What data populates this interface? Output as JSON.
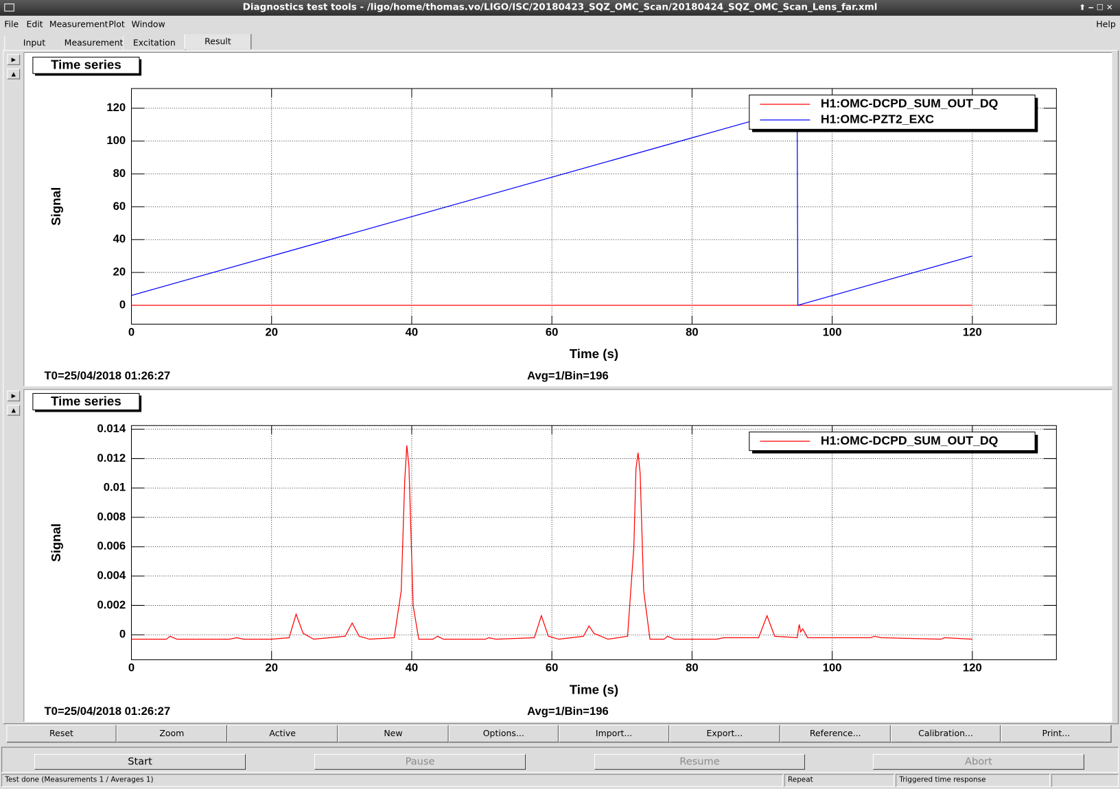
{
  "window_title": "Diagnostics test tools - /ligo/home/thomas.vo/LIGO/ISC/20180423_SQZ_OMC_Scan/20180424_SQZ_OMC_Scan_Lens_far.xml",
  "menu": [
    "File",
    "Edit",
    "Measurement",
    "Plot",
    "Window"
  ],
  "help_menu": "Help",
  "tabs": [
    "Input",
    "Measurement",
    "Excitation",
    "Result"
  ],
  "plot_buttons": [
    "Reset",
    "Zoom",
    "Active",
    "New",
    "Options...",
    "Import...",
    "Export...",
    "Reference...",
    "Calibration...",
    "Print..."
  ],
  "run_buttons": [
    "Start",
    "Pause",
    "Resume",
    "Abort"
  ],
  "status": [
    "Test done (Measurements 1 / Averages 1)",
    "Repeat",
    "Triggered time response"
  ],
  "chart_data": [
    {
      "type": "line",
      "title": "Time series",
      "xlabel": "Time (s)",
      "ylabel": "Signal",
      "annotations": [
        "T0=25/04/2018 01:26:27",
        "Avg=1/Bin=196"
      ],
      "xlim": [
        0,
        132
      ],
      "ylim": [
        -11.5,
        132
      ],
      "xticks": [
        0,
        20,
        40,
        60,
        80,
        100,
        120
      ],
      "yticks": [
        0,
        20,
        40,
        60,
        80,
        100,
        120
      ],
      "grid": true,
      "legend": "top-right",
      "series": [
        {
          "name": "H1:OMC-DCPD_SUM_OUT_DQ",
          "color": "#ff0000",
          "x": [
            0,
            120
          ],
          "values": [
            0,
            0
          ]
        },
        {
          "name": "H1:OMC-PZT2_EXC",
          "color": "#0000ff",
          "x": [
            0,
            95,
            95.1,
            120
          ],
          "values": [
            6,
            120,
            0,
            30
          ]
        }
      ]
    },
    {
      "type": "line",
      "title": "Time series",
      "xlabel": "Time (s)",
      "ylabel": "Signal",
      "annotations": [
        "T0=25/04/2018 01:26:27",
        "Avg=1/Bin=196"
      ],
      "xlim": [
        0,
        132
      ],
      "ylim": [
        -0.0017,
        0.01425
      ],
      "xticks": [
        0,
        20,
        40,
        60,
        80,
        100,
        120
      ],
      "yticks": [
        0,
        0.002,
        0.004,
        0.006,
        0.008,
        0.01,
        0.012,
        0.014
      ],
      "grid": true,
      "legend": "top-right",
      "series": [
        {
          "name": "H1:OMC-DCPD_SUM_OUT_DQ",
          "color": "#ff0000",
          "x": [
            0,
            5,
            5.5,
            6.5,
            14,
            15,
            16,
            20,
            22.5,
            23.5,
            24.5,
            26,
            30.5,
            31.5,
            32.5,
            34,
            37.5,
            38.5,
            39.0,
            39.3,
            39.6,
            40.2,
            41,
            43,
            43.7,
            44.5,
            50.5,
            51,
            52,
            57.5,
            58.5,
            59.5,
            61,
            64.5,
            65.3,
            66,
            68,
            70.8,
            71.7,
            72.0,
            72.3,
            72.6,
            73.1,
            74,
            76,
            76.5,
            77.5,
            83.5,
            84.5,
            89.5,
            90.7,
            91.8,
            95,
            95.3,
            95.5,
            95.8,
            96.5,
            105.5,
            106,
            107,
            115.5,
            116,
            120
          ],
          "values": [
            -0.0003,
            -0.0003,
            -0.0001,
            -0.0003,
            -0.0003,
            -0.0002,
            -0.0003,
            -0.0003,
            -0.0002,
            0.0014,
            0.0001,
            -0.0003,
            -0.0001,
            0.0008,
            -0.0001,
            -0.0003,
            -0.0002,
            0.003,
            0.0105,
            0.0129,
            0.0115,
            0.002,
            -0.0003,
            -0.0003,
            -0.0001,
            -0.0003,
            -0.0003,
            -0.0002,
            -0.0003,
            -0.0002,
            0.0013,
            -0.0001,
            -0.0003,
            -0.0001,
            0.0006,
            0.0001,
            -0.0003,
            -0.0001,
            0.006,
            0.0113,
            0.0124,
            0.011,
            0.003,
            -0.0003,
            -0.0003,
            -0.0001,
            -0.0003,
            -0.0003,
            -0.0002,
            -0.0002,
            0.0013,
            -0.0001,
            -0.0002,
            0.0007,
            0.0002,
            0.0004,
            -0.0002,
            -0.0002,
            -0.0001,
            -0.0002,
            -0.0003,
            -0.0002,
            -0.0003
          ]
        }
      ]
    }
  ]
}
